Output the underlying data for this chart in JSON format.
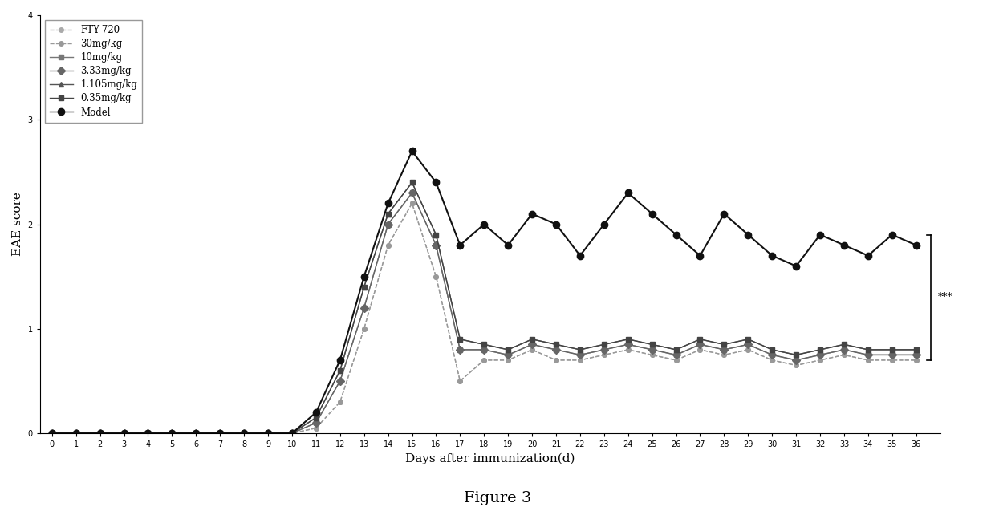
{
  "days": [
    0,
    1,
    2,
    3,
    4,
    5,
    6,
    7,
    8,
    9,
    10,
    11,
    12,
    13,
    14,
    15,
    16,
    17,
    18,
    19,
    20,
    21,
    22,
    23,
    24,
    25,
    26,
    27,
    28,
    29,
    30,
    31,
    32,
    33,
    34,
    35,
    36
  ],
  "series": {
    "FTY-720": [
      0,
      0,
      0,
      0,
      0,
      0,
      0,
      0,
      0,
      0,
      0,
      0.05,
      0.3,
      1.0,
      1.8,
      2.2,
      1.5,
      0.5,
      0.7,
      0.7,
      0.8,
      0.7,
      0.7,
      0.75,
      0.8,
      0.75,
      0.7,
      0.8,
      0.75,
      0.8,
      0.7,
      0.65,
      0.7,
      0.75,
      0.7,
      0.7,
      0.7
    ],
    "30mg/kg": [
      0,
      0,
      0,
      0,
      0,
      0,
      0,
      0,
      0,
      0,
      0,
      0.05,
      0.3,
      1.0,
      1.8,
      2.2,
      1.5,
      0.5,
      0.7,
      0.7,
      0.8,
      0.7,
      0.7,
      0.75,
      0.8,
      0.75,
      0.7,
      0.8,
      0.75,
      0.8,
      0.7,
      0.65,
      0.7,
      0.75,
      0.7,
      0.7,
      0.7
    ],
    "10mg/kg": [
      0,
      0,
      0,
      0,
      0,
      0,
      0,
      0,
      0,
      0,
      0,
      0.1,
      0.5,
      1.2,
      2.0,
      2.3,
      1.8,
      0.8,
      0.8,
      0.75,
      0.85,
      0.8,
      0.75,
      0.8,
      0.85,
      0.8,
      0.75,
      0.85,
      0.8,
      0.85,
      0.75,
      0.7,
      0.75,
      0.8,
      0.75,
      0.75,
      0.75
    ],
    "3.33mg/kg": [
      0,
      0,
      0,
      0,
      0,
      0,
      0,
      0,
      0,
      0,
      0,
      0.1,
      0.5,
      1.2,
      2.0,
      2.3,
      1.8,
      0.8,
      0.8,
      0.75,
      0.85,
      0.8,
      0.75,
      0.8,
      0.85,
      0.8,
      0.75,
      0.85,
      0.8,
      0.85,
      0.75,
      0.7,
      0.75,
      0.8,
      0.75,
      0.75,
      0.75
    ],
    "1.105mg/kg": [
      0,
      0,
      0,
      0,
      0,
      0,
      0,
      0,
      0,
      0,
      0,
      0.15,
      0.6,
      1.4,
      2.1,
      2.4,
      1.9,
      0.9,
      0.85,
      0.8,
      0.9,
      0.85,
      0.8,
      0.85,
      0.9,
      0.85,
      0.8,
      0.9,
      0.85,
      0.9,
      0.8,
      0.75,
      0.8,
      0.85,
      0.8,
      0.8,
      0.8
    ],
    "0.35mg/kg": [
      0,
      0,
      0,
      0,
      0,
      0,
      0,
      0,
      0,
      0,
      0,
      0.15,
      0.6,
      1.4,
      2.1,
      2.4,
      1.9,
      0.9,
      0.85,
      0.8,
      0.9,
      0.85,
      0.8,
      0.85,
      0.9,
      0.85,
      0.8,
      0.9,
      0.85,
      0.9,
      0.8,
      0.75,
      0.8,
      0.85,
      0.8,
      0.8,
      0.8
    ],
    "Model": [
      0,
      0,
      0,
      0,
      0,
      0,
      0,
      0,
      0,
      0,
      0,
      0.2,
      0.7,
      1.5,
      2.2,
      2.7,
      2.4,
      1.8,
      2.0,
      1.8,
      2.1,
      2.0,
      1.7,
      2.0,
      2.3,
      2.1,
      1.9,
      1.7,
      2.1,
      1.9,
      1.7,
      1.6,
      1.9,
      1.8,
      1.7,
      1.9,
      1.8
    ]
  },
  "colors": {
    "FTY-720": "#aaaaaa",
    "30mg/kg": "#999999",
    "10mg/kg": "#777777",
    "3.33mg/kg": "#666666",
    "1.105mg/kg": "#555555",
    "0.35mg/kg": "#444444",
    "Model": "#111111"
  },
  "markers": {
    "FTY-720": "o",
    "30mg/kg": "o",
    "10mg/kg": "s",
    "3.33mg/kg": "D",
    "1.105mg/kg": "^",
    "0.35mg/kg": "s",
    "Model": "o"
  },
  "markersizes": {
    "FTY-720": 4,
    "30mg/kg": 4,
    "10mg/kg": 4,
    "3.33mg/kg": 5,
    "1.105mg/kg": 5,
    "0.35mg/kg": 5,
    "Model": 6
  },
  "linestyles": {
    "FTY-720": "--",
    "30mg/kg": "--",
    "10mg/kg": "-",
    "3.33mg/kg": "-",
    "1.105mg/kg": "-",
    "0.35mg/kg": "-",
    "Model": "-"
  },
  "linewidths": {
    "FTY-720": 1.0,
    "30mg/kg": 1.0,
    "10mg/kg": 1.0,
    "3.33mg/kg": 1.0,
    "1.105mg/kg": 1.0,
    "0.35mg/kg": 1.0,
    "Model": 1.5
  },
  "series_order": [
    "FTY-720",
    "30mg/kg",
    "10mg/kg",
    "3.33mg/kg",
    "1.105mg/kg",
    "0.35mg/kg",
    "Model"
  ],
  "xlabel": "Days after immunization(d)",
  "ylabel": "EAE score",
  "ylim": [
    0,
    4
  ],
  "yticks": [
    0,
    1,
    2,
    3,
    4
  ],
  "xlim": [
    -0.5,
    37
  ],
  "significance_text": "***",
  "title": "Figure 3",
  "bracket_y_low": 0.7,
  "bracket_y_high": 1.9
}
